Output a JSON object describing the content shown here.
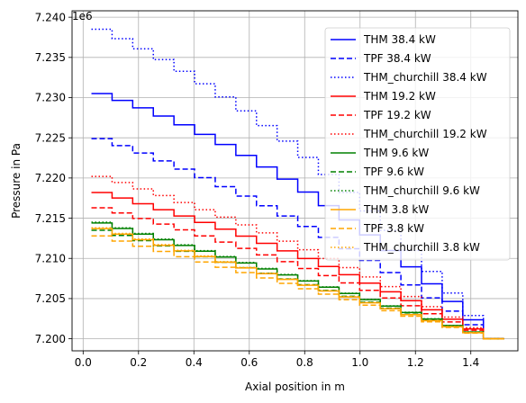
{
  "chart_data": {
    "type": "line",
    "xlabel": "Axial position in m",
    "ylabel": "Pressure in Pa",
    "offset_label": "1e6",
    "xlim": [
      -0.04,
      1.57
    ],
    "ylim": [
      7.1985,
      7.2408
    ],
    "scale": 1000000,
    "x_ticks": [
      0.0,
      0.2,
      0.4,
      0.6,
      0.8,
      1.0,
      1.2,
      1.4
    ],
    "x_tick_labels": [
      "0.0",
      "0.2",
      "0.4",
      "0.6",
      "0.8",
      "1.0",
      "1.2",
      "1.4"
    ],
    "y_ticks": [
      7.2,
      7.205,
      7.21,
      7.215,
      7.22,
      7.225,
      7.23,
      7.235,
      7.24
    ],
    "y_tick_labels": [
      "7.200",
      "7.205",
      "7.210",
      "7.215",
      "7.220",
      "7.225",
      "7.230",
      "7.235",
      "7.240"
    ],
    "grid": true,
    "legend_position": "top-right",
    "series": [
      {
        "name": "THM 38.4 kW",
        "color": "#0000ff",
        "dash": "solid",
        "x_start": 0.03,
        "x_end": 1.52,
        "steps": 20,
        "y_start": 7.2305,
        "y_end": 7.2,
        "curve": 0.5
      },
      {
        "name": "TPF 38.4 kW",
        "color": "#0000ff",
        "dash": "dashed",
        "x_start": 0.03,
        "x_end": 1.52,
        "steps": 20,
        "y_start": 7.2249,
        "y_end": 7.2,
        "curve": 0.35
      },
      {
        "name": "THM_churchill 38.4 kW",
        "color": "#0000ff",
        "dash": "dotted",
        "x_start": 0.03,
        "x_end": 1.52,
        "steps": 20,
        "y_start": 7.2385,
        "y_end": 7.2,
        "curve": 0.45
      },
      {
        "name": "THM 19.2 kW",
        "color": "#ff0000",
        "dash": "solid",
        "x_start": 0.03,
        "x_end": 1.52,
        "steps": 20,
        "y_start": 7.2182,
        "y_end": 7.2,
        "curve": 0.3
      },
      {
        "name": "TPF 19.2 kW",
        "color": "#ff0000",
        "dash": "dashed",
        "x_start": 0.03,
        "x_end": 1.52,
        "steps": 20,
        "y_start": 7.2163,
        "y_end": 7.2,
        "curve": 0.25
      },
      {
        "name": "THM_churchill 19.2 kW",
        "color": "#ff0000",
        "dash": "dotted",
        "x_start": 0.03,
        "x_end": 1.52,
        "steps": 20,
        "y_start": 7.2202,
        "y_end": 7.2,
        "curve": 0.3
      },
      {
        "name": "THM 9.6 kW",
        "color": "#008000",
        "dash": "solid",
        "x_start": 0.03,
        "x_end": 1.52,
        "steps": 20,
        "y_start": 7.2144,
        "y_end": 7.2,
        "curve": 0.1
      },
      {
        "name": "TPF 9.6 kW",
        "color": "#008000",
        "dash": "dashed",
        "x_start": 0.03,
        "x_end": 1.52,
        "steps": 20,
        "y_start": 7.2135,
        "y_end": 7.2,
        "curve": 0.1
      },
      {
        "name": "THM_churchill 9.6 kW",
        "color": "#008000",
        "dash": "dotted",
        "x_start": 0.03,
        "x_end": 1.52,
        "steps": 20,
        "y_start": 7.2145,
        "y_end": 7.2,
        "curve": 0.1
      },
      {
        "name": "THM 3.8 kW",
        "color": "#ffa500",
        "dash": "solid",
        "x_start": 0.03,
        "x_end": 1.52,
        "steps": 20,
        "y_start": 7.2137,
        "y_end": 7.2,
        "curve": 0.05
      },
      {
        "name": "TPF 3.8 kW",
        "color": "#ffa500",
        "dash": "dashed",
        "x_start": 0.03,
        "x_end": 1.52,
        "steps": 20,
        "y_start": 7.2128,
        "y_end": 7.2,
        "curve": 0.05
      },
      {
        "name": "THM_churchill 3.8 kW",
        "color": "#ffa500",
        "dash": "dotted",
        "x_start": 0.03,
        "x_end": 1.52,
        "steps": 20,
        "y_start": 7.2138,
        "y_end": 7.2,
        "curve": 0.05
      }
    ]
  }
}
